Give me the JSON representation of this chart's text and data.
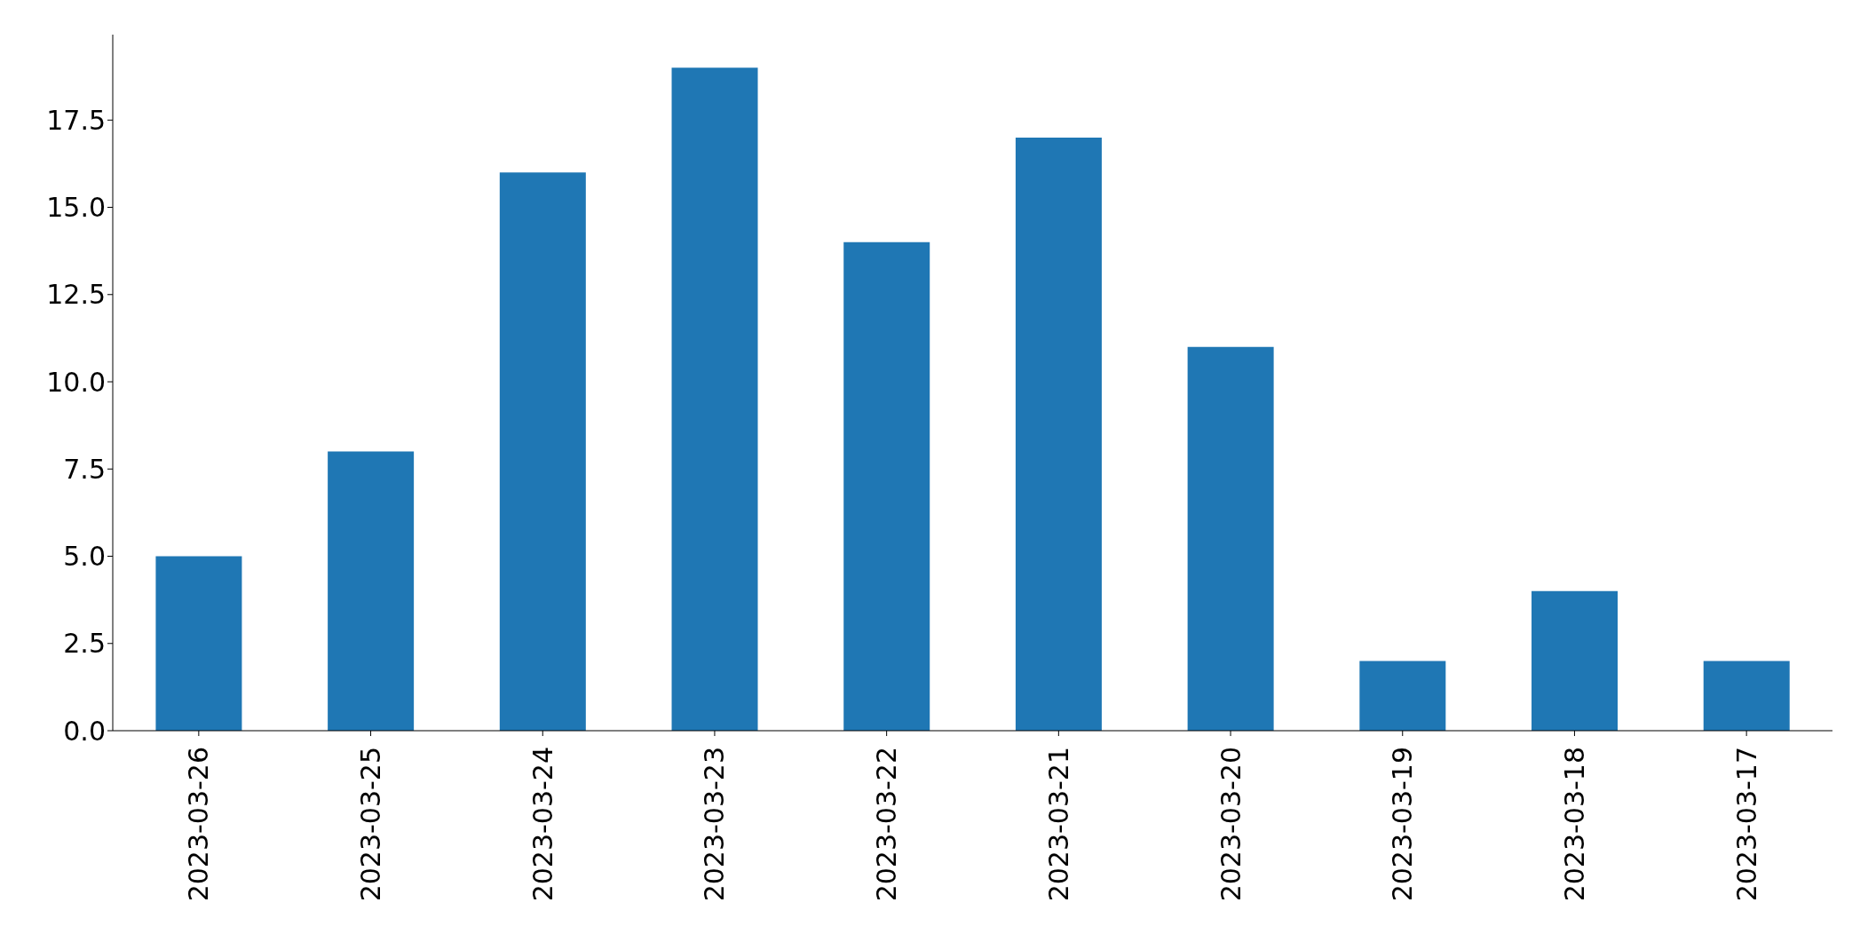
{
  "chart_data": {
    "type": "bar",
    "categories": [
      "2023-03-26",
      "2023-03-25",
      "2023-03-24",
      "2023-03-23",
      "2023-03-22",
      "2023-03-21",
      "2023-03-20",
      "2023-03-19",
      "2023-03-18",
      "2023-03-17"
    ],
    "values": [
      5,
      8,
      16,
      19,
      14,
      17,
      11,
      2,
      4,
      2
    ],
    "color": "#1f77b4",
    "ylim": [
      0,
      19.95
    ],
    "yticks": [
      {
        "value": 0,
        "label": "0.0"
      },
      {
        "value": 2.5,
        "label": "2.5"
      },
      {
        "value": 5,
        "label": "5.0"
      },
      {
        "value": 7.5,
        "label": "7.5"
      },
      {
        "value": 10,
        "label": "10.0"
      },
      {
        "value": 12.5,
        "label": "12.5"
      },
      {
        "value": 15,
        "label": "15.0"
      },
      {
        "value": 17.5,
        "label": "17.5"
      }
    ],
    "grid": false,
    "legend": false
  }
}
